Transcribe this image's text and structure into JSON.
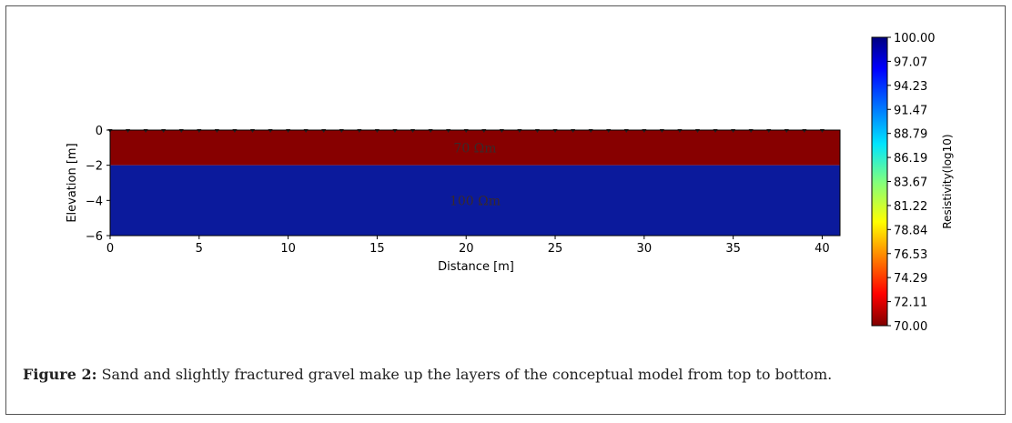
{
  "chart_data": {
    "type": "heatmap",
    "title": "",
    "xlabel": "Distance [m]",
    "ylabel": "Elevation [m]",
    "xlim": [
      0,
      41
    ],
    "ylim": [
      -6,
      0
    ],
    "xticks": [
      0,
      5,
      10,
      15,
      20,
      25,
      30,
      35,
      40
    ],
    "yticks": [
      0,
      -2,
      -4,
      -6
    ],
    "layers": [
      {
        "top": 0,
        "bottom": -2,
        "resistivity": 70,
        "label": "70 Ωm",
        "color": "#870000"
      },
      {
        "top": -2,
        "bottom": -6,
        "resistivity": 100,
        "label": "100 Ωm",
        "color": "#0b1a9c"
      }
    ],
    "electrodes": [
      0,
      1,
      2,
      3,
      4,
      5,
      6,
      7,
      8,
      9,
      10,
      11,
      12,
      13,
      14,
      15,
      16,
      17,
      18,
      19,
      20,
      21,
      22,
      23,
      24,
      25,
      26,
      27,
      28,
      29,
      30,
      31,
      32,
      33,
      34,
      35,
      36,
      37,
      38,
      39,
      40
    ],
    "colorbar": {
      "label": "Resistivity(log10)",
      "min": 70.0,
      "max": 100.0,
      "ticks": [
        "100.00",
        "97.07",
        "94.23",
        "91.47",
        "88.79",
        "86.19",
        "83.67",
        "81.22",
        "78.84",
        "76.53",
        "74.29",
        "72.11",
        "70.00"
      ]
    }
  },
  "caption": {
    "label": "Figure 2:",
    "text": " Sand and slightly fractured gravel make up the layers of the conceptual model from top to bottom."
  }
}
